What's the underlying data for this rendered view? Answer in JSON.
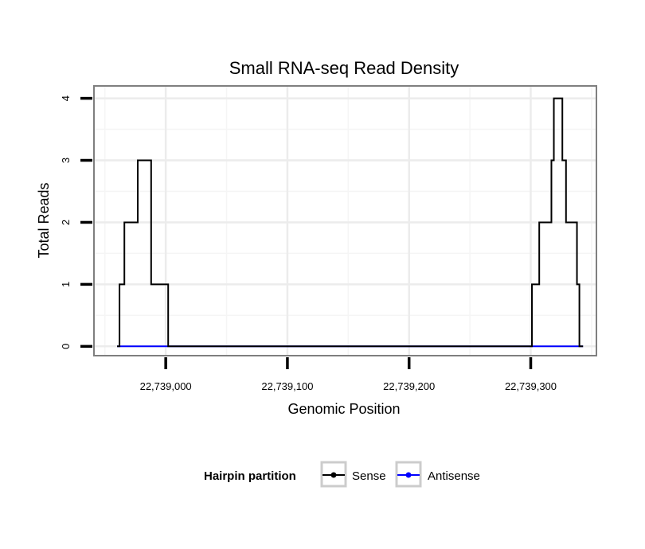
{
  "chart_data": {
    "type": "line",
    "title": "Small RNA-seq Read Density",
    "xlabel": "Genomic Position",
    "ylabel": "Total Reads",
    "xlim": [
      22738941,
      22739354
    ],
    "ylim": [
      -0.15,
      4.2
    ],
    "x_ticks": [
      {
        "value": 22739000,
        "label": "22,739,000"
      },
      {
        "value": 22739100,
        "label": "22,739,100"
      },
      {
        "value": 22739200,
        "label": "22,739,200"
      },
      {
        "value": 22739300,
        "label": "22,739,300"
      }
    ],
    "y_ticks": [
      {
        "value": 0,
        "label": "0"
      },
      {
        "value": 1,
        "label": "1"
      },
      {
        "value": 2,
        "label": "2"
      },
      {
        "value": 3,
        "label": "3"
      },
      {
        "value": 4,
        "label": "4"
      }
    ],
    "grid": true,
    "legend": {
      "title": "Hairpin partition",
      "position": "bottom",
      "entries": [
        {
          "name": "Sense",
          "color": "#000000"
        },
        {
          "name": "Antisense",
          "color": "#0000ff"
        }
      ]
    },
    "series": [
      {
        "name": "Sense",
        "color": "#000000",
        "x": [
          22738960,
          22738962,
          22738962,
          22738966,
          22738966,
          22738970,
          22738970,
          22738977,
          22738977,
          22738980,
          22738980,
          22738988,
          22738988,
          22738990,
          22738990,
          22739002,
          22739002,
          22739004,
          22739004,
          22739301,
          22739301,
          22739303,
          22739303,
          22739307,
          22739307,
          22739310,
          22739310,
          22739317,
          22739317,
          22739319,
          22739319,
          22739320,
          22739320,
          22739325,
          22739325,
          22739326,
          22739326,
          22739329,
          22739329,
          22739333,
          22739333,
          22739338,
          22739338,
          22739340,
          22739340,
          22739343
        ],
        "values": [
          0,
          0,
          1,
          1,
          2,
          2,
          2,
          2,
          3,
          3,
          3,
          3,
          1,
          1,
          1,
          1,
          0,
          0,
          0,
          0,
          1,
          1,
          1,
          1,
          2,
          2,
          2,
          2,
          3,
          3,
          4,
          4,
          4,
          4,
          4,
          4,
          3,
          3,
          2,
          2,
          2,
          2,
          1,
          1,
          0,
          0
        ]
      },
      {
        "name": "Antisense",
        "color": "#0000ff",
        "x": [
          22738960,
          22739004,
          22739301,
          22739343
        ],
        "values": [
          0,
          0,
          0,
          0
        ]
      }
    ]
  }
}
